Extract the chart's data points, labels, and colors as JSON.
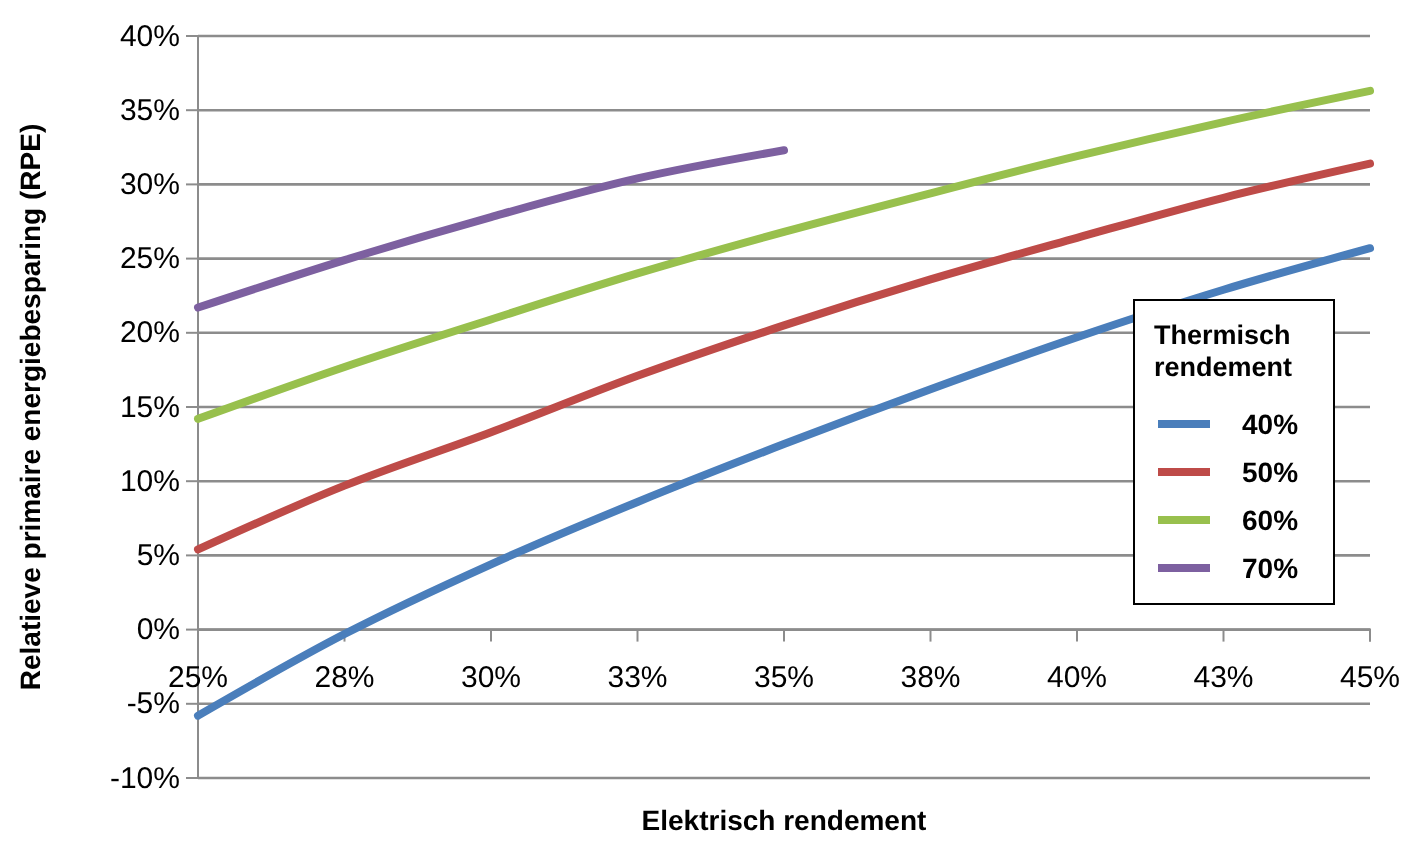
{
  "chart_data": {
    "type": "line",
    "xlabel": "Elektrisch rendement",
    "ylabel": "Relatieve primaire energiebesparing (RPE)",
    "legend_title": "Thermisch rendement",
    "legend": "right",
    "grid": "y",
    "marker": "none",
    "line_style": "solid",
    "x": [
      25,
      27.5,
      30,
      32.5,
      35,
      37.5,
      40,
      42.5,
      45
    ],
    "xlim": [
      25,
      45
    ],
    "xticks": [
      {
        "value": 25,
        "label": "25%"
      },
      {
        "value": 27.5,
        "label": "28%"
      },
      {
        "value": 30,
        "label": "30%"
      },
      {
        "value": 32.5,
        "label": "33%"
      },
      {
        "value": 35,
        "label": "35%"
      },
      {
        "value": 37.5,
        "label": "38%"
      },
      {
        "value": 40,
        "label": "40%"
      },
      {
        "value": 42.5,
        "label": "43%"
      },
      {
        "value": 45,
        "label": "45%"
      }
    ],
    "ylim": [
      -10,
      40
    ],
    "yticks": [
      {
        "value": -10,
        "label": "-10%"
      },
      {
        "value": -5,
        "label": "-5%"
      },
      {
        "value": 0,
        "label": "0%"
      },
      {
        "value": 5,
        "label": "5%"
      },
      {
        "value": 10,
        "label": "10%"
      },
      {
        "value": 15,
        "label": "15%"
      },
      {
        "value": 20,
        "label": "20%"
      },
      {
        "value": 25,
        "label": "25%"
      },
      {
        "value": 30,
        "label": "30%"
      },
      {
        "value": 35,
        "label": "35%"
      },
      {
        "value": 40,
        "label": "40%"
      }
    ],
    "series": [
      {
        "name": "40%",
        "color": "#4a7ebb",
        "values": [
          -5.8,
          -0.3,
          4.4,
          8.6,
          12.5,
          16.2,
          19.7,
          22.9,
          25.7
        ]
      },
      {
        "name": "50%",
        "color": "#be4b48",
        "values": [
          5.4,
          9.7,
          13.3,
          17.1,
          20.5,
          23.6,
          26.4,
          29.1,
          31.4
        ]
      },
      {
        "name": "60%",
        "color": "#98c04d",
        "values": [
          14.2,
          17.7,
          20.9,
          24.0,
          26.8,
          29.4,
          31.9,
          34.2,
          36.3
        ]
      },
      {
        "name": "70%",
        "color": "#7d60a0",
        "values": [
          21.7,
          24.9,
          27.8,
          30.4,
          32.3,
          null,
          null,
          null,
          null
        ]
      }
    ]
  }
}
